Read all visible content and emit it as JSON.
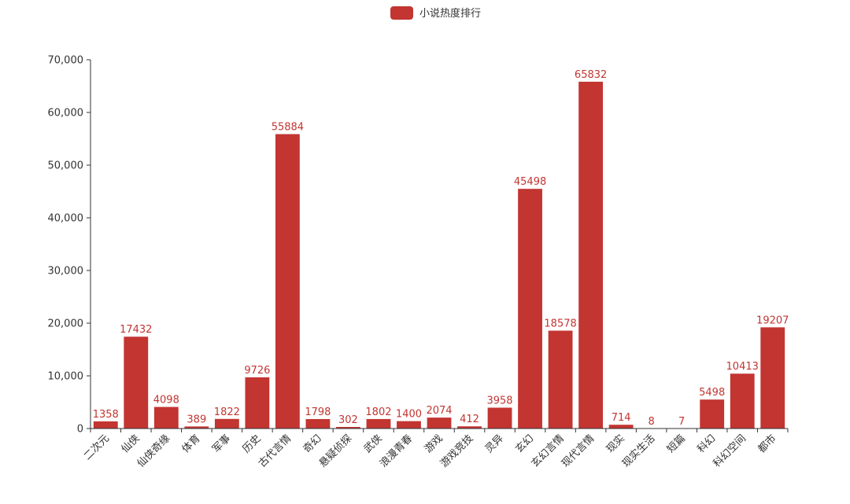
{
  "chart_data": {
    "type": "bar",
    "title": "",
    "xlabel": "",
    "ylabel": "",
    "ylim": [
      0,
      70000
    ],
    "y_ticks": [
      "0",
      "10,000",
      "20,000",
      "30,000",
      "40,000",
      "50,000",
      "60,000",
      "70,000"
    ],
    "y_tick_values": [
      0,
      10000,
      20000,
      30000,
      40000,
      50000,
      60000,
      70000
    ],
    "grid": false,
    "legend_position": "top-center",
    "bar_color": "#c23531",
    "categories": [
      "二次元",
      "仙侠",
      "仙侠奇缘",
      "体育",
      "军事",
      "历史",
      "古代言情",
      "奇幻",
      "悬疑侦探",
      "武侠",
      "浪漫青春",
      "游戏",
      "游戏竞技",
      "灵异",
      "玄幻",
      "玄幻言情",
      "现代言情",
      "现实",
      "现实生活",
      "短篇",
      "科幻",
      "科幻空间",
      "都市"
    ],
    "series": [
      {
        "name": "小说热度排行",
        "values": [
          1358,
          17432,
          4098,
          389,
          1822,
          9726,
          55884,
          1798,
          302,
          1802,
          1400,
          2074,
          412,
          3958,
          45498,
          18578,
          65832,
          714,
          8,
          7,
          5498,
          10413,
          19207
        ]
      }
    ]
  }
}
